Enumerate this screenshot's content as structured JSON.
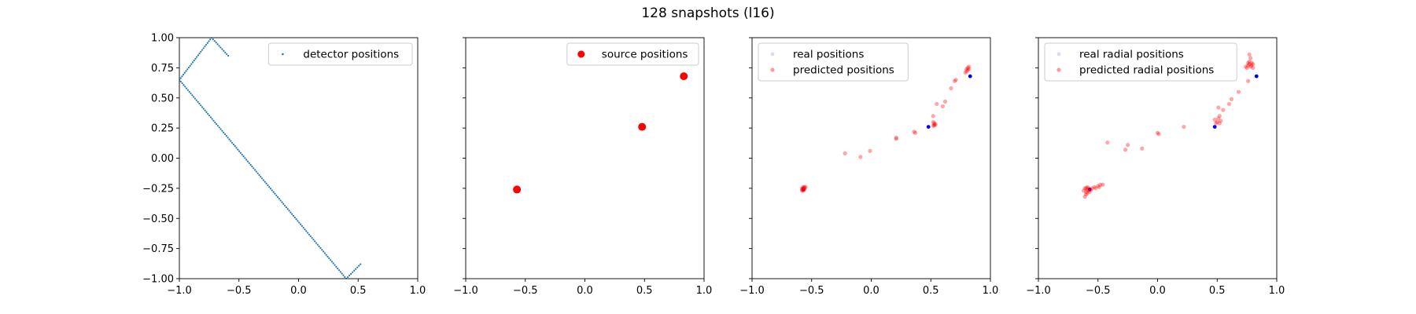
{
  "suptitle": "128 snapshots (l16)",
  "colors": {
    "detector": "#1f77b4",
    "source": "#ff0000",
    "real": "#0000ff",
    "predicted": "#ff0000"
  },
  "chart_data": [
    {
      "type": "scatter",
      "title": "",
      "xlabel": "",
      "ylabel": "",
      "xlim": [
        -1.0,
        1.0
      ],
      "ylim": [
        -1.0,
        1.0
      ],
      "xticks": [
        "−1.0",
        "−0.5",
        "0.0",
        "0.5",
        "1.0"
      ],
      "yticks": [
        "−1.00",
        "−0.75",
        "−0.50",
        "−0.25",
        "0.00",
        "0.25",
        "0.50",
        "0.75",
        "1.00"
      ],
      "legend_position": "top-right",
      "series": [
        {
          "name": "detector positions",
          "color": "#1f77b4",
          "marker": "dot",
          "polyline": [
            [
              0.52,
              -0.88
            ],
            [
              0.4,
              -1.0
            ],
            [
              -1.0,
              0.65
            ],
            [
              -0.73,
              1.0
            ],
            [
              -0.59,
              0.85
            ]
          ],
          "point_spacing": 0.0185
        }
      ]
    },
    {
      "type": "scatter",
      "title": "",
      "xlabel": "",
      "ylabel": "",
      "xlim": [
        -1.0,
        1.0
      ],
      "ylim": [
        -1.0,
        1.0
      ],
      "xticks": [
        "−1.0",
        "−0.5",
        "0.0",
        "0.5",
        "1.0"
      ],
      "yticks": [],
      "legend_position": "top-right",
      "series": [
        {
          "name": "source positions",
          "color": "#ff0000",
          "marker": "large-dot",
          "points": [
            [
              -0.57,
              -0.26
            ],
            [
              0.48,
              0.26
            ],
            [
              0.83,
              0.68
            ]
          ]
        }
      ]
    },
    {
      "type": "scatter",
      "title": "",
      "xlabel": "",
      "ylabel": "",
      "xlim": [
        -1.0,
        1.0
      ],
      "ylim": [
        -1.0,
        1.0
      ],
      "xticks": [
        "−1.0",
        "−0.5",
        "0.0",
        "0.5",
        "1.0"
      ],
      "yticks": [],
      "legend_position": "top-left",
      "series": [
        {
          "name": "real positions",
          "color": "#0000ff",
          "marker": "small-dot",
          "points": [
            [
              -0.57,
              -0.26
            ],
            [
              0.48,
              0.26
            ],
            [
              0.83,
              0.68
            ]
          ]
        },
        {
          "name": "predicted positions",
          "color": "#ff0000",
          "marker": "translucent-dot",
          "points": [
            [
              -0.58,
              -0.26
            ],
            [
              -0.57,
              -0.25
            ],
            [
              -0.56,
              -0.24
            ],
            [
              -0.57,
              -0.27
            ],
            [
              -0.58,
              -0.25
            ],
            [
              -0.56,
              -0.26
            ],
            [
              -0.57,
              -0.24
            ],
            [
              -0.55,
              -0.24
            ],
            [
              -0.58,
              -0.27
            ],
            [
              -0.57,
              -0.25
            ],
            [
              -0.56,
              -0.25
            ],
            [
              -0.57,
              -0.26
            ],
            [
              -0.22,
              0.04
            ],
            [
              -0.09,
              0.01
            ],
            [
              -0.01,
              0.06
            ],
            [
              0.21,
              0.17
            ],
            [
              0.21,
              0.16
            ],
            [
              0.36,
              0.22
            ],
            [
              0.37,
              0.21
            ],
            [
              0.53,
              0.28
            ],
            [
              0.53,
              0.29
            ],
            [
              0.52,
              0.27
            ],
            [
              0.54,
              0.28
            ],
            [
              0.53,
              0.27
            ],
            [
              0.52,
              0.3
            ],
            [
              0.52,
              0.35
            ],
            [
              0.55,
              0.45
            ],
            [
              0.6,
              0.43
            ],
            [
              0.62,
              0.47
            ],
            [
              0.67,
              0.58
            ],
            [
              0.7,
              0.64
            ],
            [
              0.71,
              0.65
            ],
            [
              0.8,
              0.74
            ],
            [
              0.81,
              0.75
            ],
            [
              0.82,
              0.74
            ],
            [
              0.8,
              0.72
            ],
            [
              0.79,
              0.71
            ],
            [
              0.81,
              0.73
            ],
            [
              0.82,
              0.76
            ]
          ]
        }
      ]
    },
    {
      "type": "scatter",
      "title": "",
      "xlabel": "",
      "ylabel": "",
      "xlim": [
        -1.0,
        1.0
      ],
      "ylim": [
        -1.0,
        1.0
      ],
      "xticks": [
        "−1.0",
        "−0.5",
        "0.0",
        "0.5",
        "1.0"
      ],
      "yticks": [],
      "legend_position": "top-left",
      "series": [
        {
          "name": "real radial positions",
          "color": "#0000ff",
          "marker": "small-dot",
          "points": [
            [
              -0.57,
              -0.26
            ],
            [
              0.48,
              0.26
            ],
            [
              0.83,
              0.68
            ]
          ]
        },
        {
          "name": "predicted radial positions",
          "color": "#ff0000",
          "marker": "translucent-dot",
          "points": [
            [
              -0.6,
              -0.25
            ],
            [
              -0.59,
              -0.26
            ],
            [
              -0.58,
              -0.27
            ],
            [
              -0.6,
              -0.28
            ],
            [
              -0.61,
              -0.25
            ],
            [
              -0.59,
              -0.24
            ],
            [
              -0.58,
              -0.25
            ],
            [
              -0.6,
              -0.3
            ],
            [
              -0.61,
              -0.32
            ],
            [
              -0.57,
              -0.28
            ],
            [
              -0.56,
              -0.26
            ],
            [
              -0.55,
              -0.25
            ],
            [
              -0.59,
              -0.29
            ],
            [
              -0.62,
              -0.27
            ],
            [
              -0.53,
              -0.24
            ],
            [
              -0.5,
              -0.23
            ],
            [
              -0.48,
              -0.22
            ],
            [
              -0.46,
              -0.22
            ],
            [
              -0.52,
              -0.25
            ],
            [
              -0.49,
              -0.24
            ],
            [
              -0.42,
              0.13
            ],
            [
              -0.27,
              0.07
            ],
            [
              -0.25,
              0.11
            ],
            [
              -0.13,
              0.08
            ],
            [
              0.0,
              0.21
            ],
            [
              0.01,
              0.2
            ],
            [
              0.22,
              0.26
            ],
            [
              0.48,
              0.32
            ],
            [
              0.5,
              0.3
            ],
            [
              0.52,
              0.29
            ],
            [
              0.53,
              0.31
            ],
            [
              0.51,
              0.33
            ],
            [
              0.49,
              0.29
            ],
            [
              0.52,
              0.35
            ],
            [
              0.51,
              0.42
            ],
            [
              0.55,
              0.4
            ],
            [
              0.6,
              0.45
            ],
            [
              0.62,
              0.49
            ],
            [
              0.68,
              0.55
            ],
            [
              0.76,
              0.64
            ],
            [
              0.75,
              0.75
            ],
            [
              0.76,
              0.77
            ],
            [
              0.77,
              0.78
            ],
            [
              0.78,
              0.76
            ],
            [
              0.79,
              0.77
            ],
            [
              0.8,
              0.75
            ],
            [
              0.77,
              0.8
            ],
            [
              0.78,
              0.83
            ],
            [
              0.77,
              0.86
            ],
            [
              0.76,
              0.79
            ],
            [
              0.79,
              0.79
            ],
            [
              0.74,
              0.76
            ],
            [
              0.8,
              0.78
            ]
          ]
        }
      ]
    }
  ]
}
